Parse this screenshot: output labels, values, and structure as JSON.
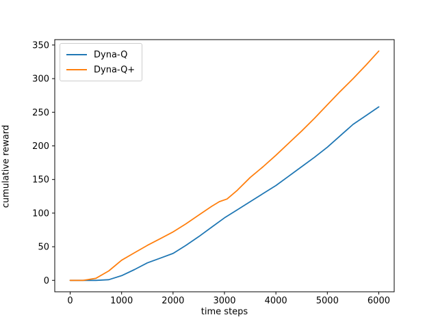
{
  "chart_data": {
    "type": "line",
    "title": "",
    "xlabel": "time steps",
    "ylabel": "cumulative reward",
    "x_ticks": [
      0,
      1000,
      2000,
      3000,
      4000,
      5000,
      6000
    ],
    "y_ticks": [
      0,
      50,
      100,
      150,
      200,
      250,
      300,
      350
    ],
    "xlim": [
      -300,
      6300
    ],
    "ylim": [
      -17,
      358
    ],
    "grid": false,
    "legend_position": "upper-left",
    "axis_color": "#000000",
    "background_color": "#ffffff",
    "series": [
      {
        "name": "Dyna-Q",
        "color": "#1f77b4",
        "points": [
          [
            0,
            0
          ],
          [
            250,
            0
          ],
          [
            500,
            0
          ],
          [
            750,
            1
          ],
          [
            1000,
            7
          ],
          [
            1250,
            16
          ],
          [
            1500,
            26
          ],
          [
            1750,
            33
          ],
          [
            2000,
            40
          ],
          [
            2250,
            52
          ],
          [
            2500,
            65
          ],
          [
            2750,
            79
          ],
          [
            3000,
            93
          ],
          [
            3250,
            105
          ],
          [
            3500,
            117
          ],
          [
            3750,
            129
          ],
          [
            4000,
            141
          ],
          [
            4250,
            155
          ],
          [
            4500,
            169
          ],
          [
            4750,
            183
          ],
          [
            5000,
            198
          ],
          [
            5250,
            215
          ],
          [
            5500,
            232
          ],
          [
            5750,
            245
          ],
          [
            6000,
            258
          ]
        ]
      },
      {
        "name": "Dyna-Q+",
        "color": "#ff7f0e",
        "points": [
          [
            0,
            0
          ],
          [
            250,
            0
          ],
          [
            500,
            3
          ],
          [
            750,
            14
          ],
          [
            1000,
            30
          ],
          [
            1250,
            41
          ],
          [
            1500,
            52
          ],
          [
            1750,
            62
          ],
          [
            2000,
            72
          ],
          [
            2250,
            84
          ],
          [
            2500,
            97
          ],
          [
            2750,
            110
          ],
          [
            2900,
            117
          ],
          [
            3050,
            121
          ],
          [
            3250,
            134
          ],
          [
            3500,
            153
          ],
          [
            3750,
            169
          ],
          [
            4000,
            186
          ],
          [
            4250,
            204
          ],
          [
            4500,
            222
          ],
          [
            4750,
            241
          ],
          [
            5000,
            261
          ],
          [
            5250,
            281
          ],
          [
            5500,
            300
          ],
          [
            5750,
            320
          ],
          [
            6000,
            341
          ]
        ]
      }
    ]
  }
}
